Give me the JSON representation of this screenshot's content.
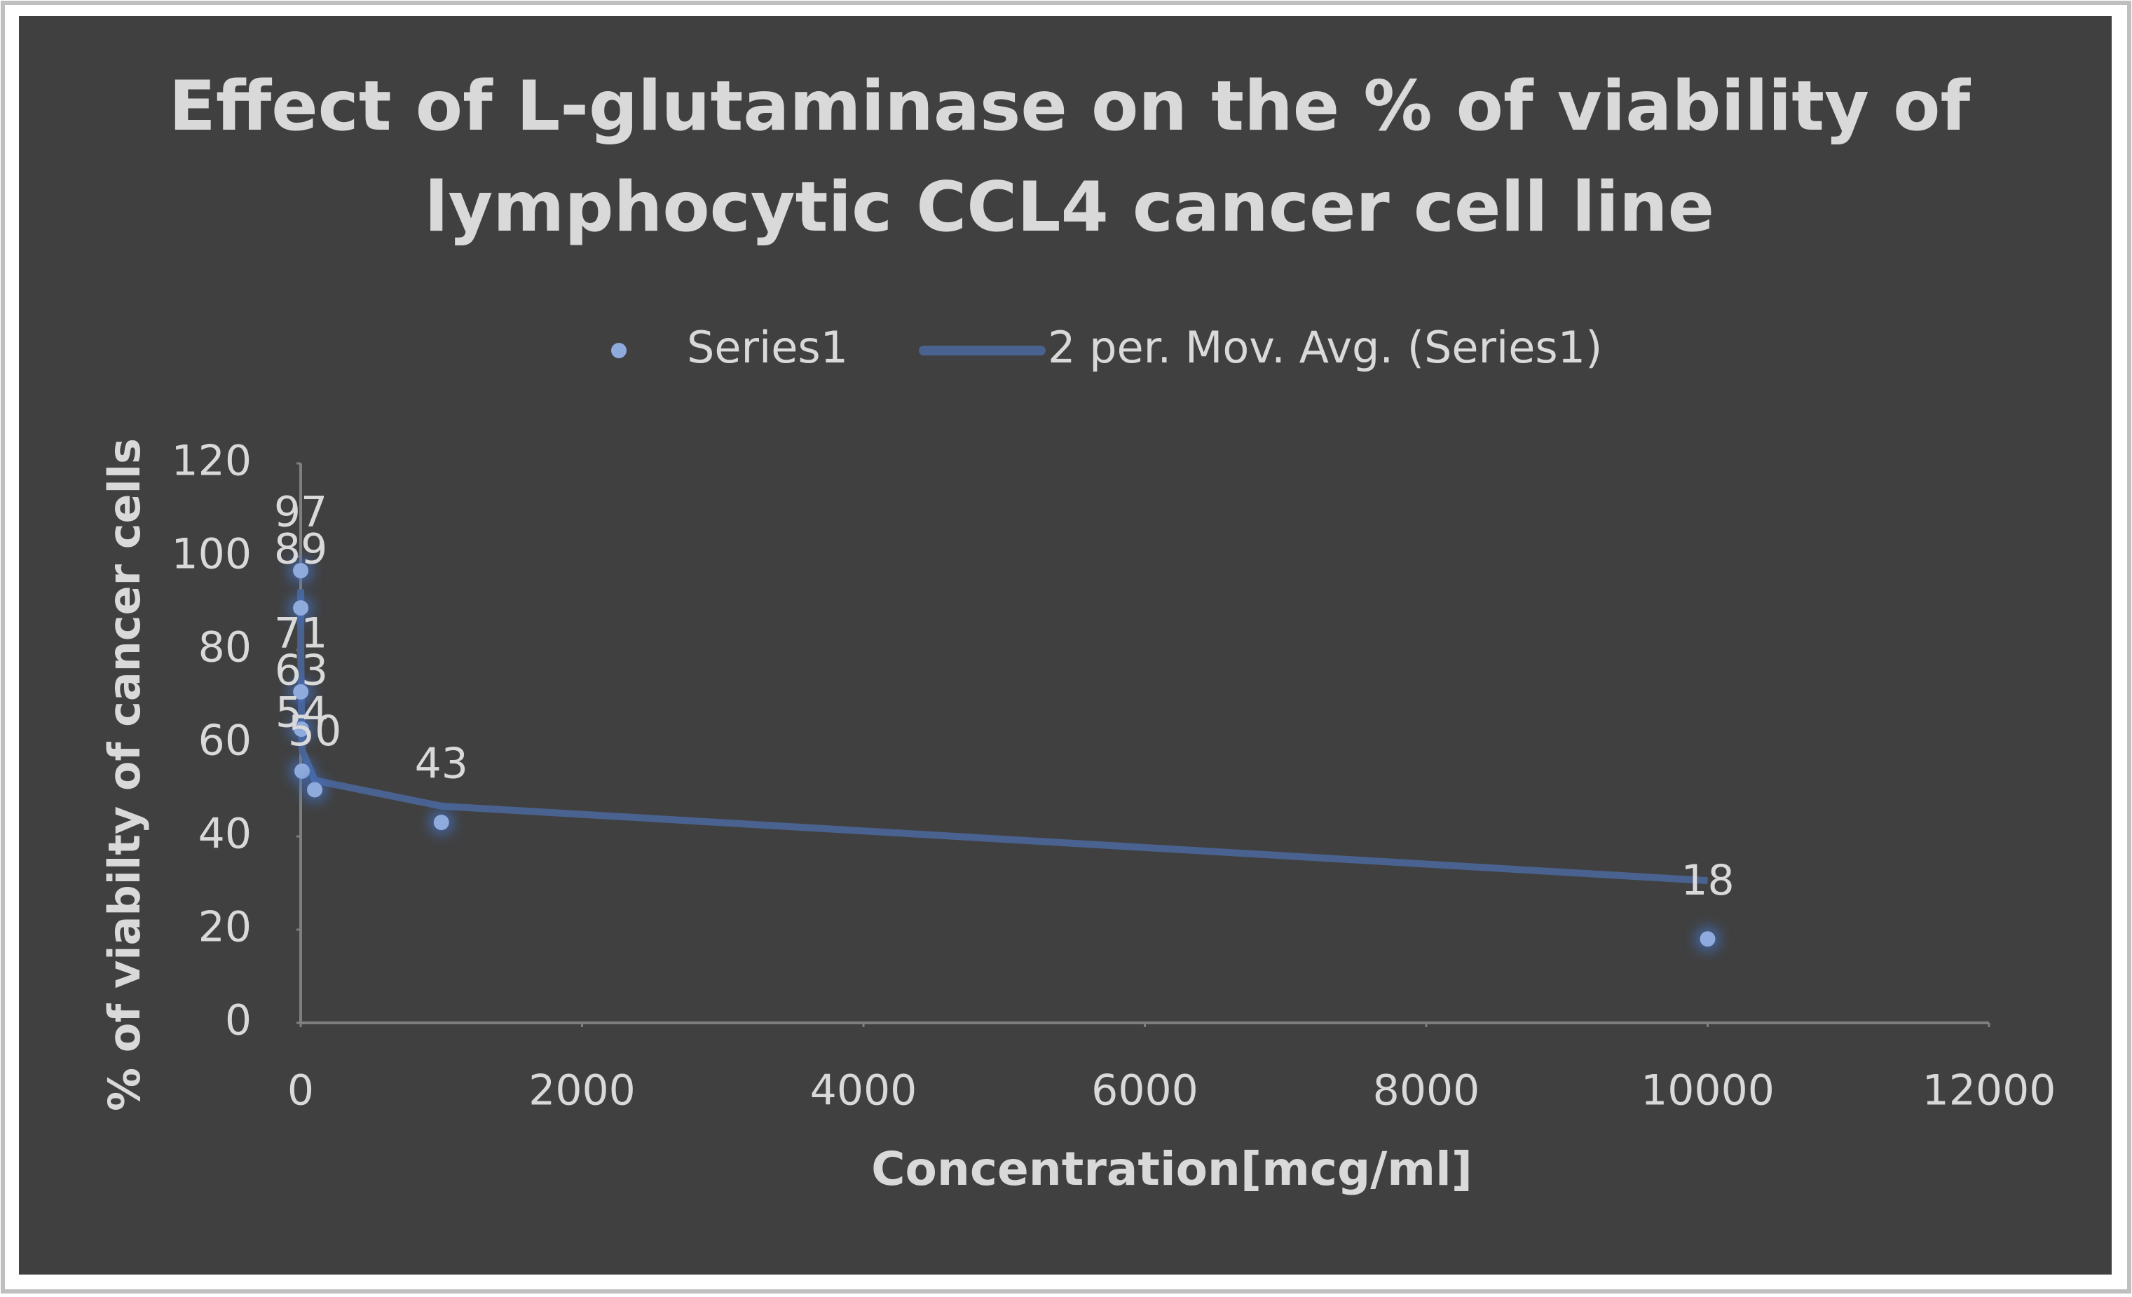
{
  "chart_data": {
    "type": "scatter",
    "title": "Effect of L-glutaminase on the % of viability of lymphocytic CCL4 cancer cell line",
    "x_label": "Concentration[mcg/ml]",
    "y_label": "% of viabilty of cancer cells",
    "trendline_name": "2 per. Mov. Avg. (Series1)",
    "series": [
      {
        "name": "Series1",
        "color": "#8faadc",
        "trend_color": "#4a6290",
        "x": [
          0.1,
          0.5,
          1,
          5,
          10,
          100,
          1000,
          10000
        ],
        "values": [
          97,
          89,
          71,
          63,
          54,
          50,
          43,
          18
        ]
      }
    ],
    "xlim": [
      0,
      12000
    ],
    "xticks": [
      0,
      2000,
      4000,
      6000,
      8000,
      10000,
      12000
    ],
    "ylim": [
      0,
      120
    ],
    "yticks": [
      0,
      20,
      40,
      60,
      80,
      100,
      120
    ]
  }
}
